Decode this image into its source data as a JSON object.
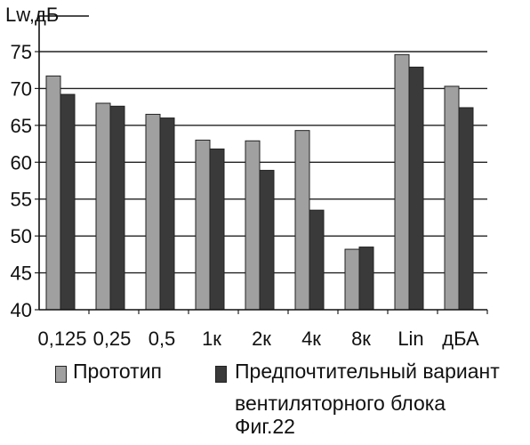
{
  "chart_data": {
    "type": "bar",
    "ylabel": "Lw,дБ",
    "xlabel": "",
    "title": "",
    "ylim": [
      40,
      75
    ],
    "yticks": [
      40,
      45,
      50,
      55,
      60,
      65,
      70,
      75
    ],
    "grid": true,
    "legend_position": "bottom",
    "categories": [
      "0,125",
      "0,25",
      "0,5",
      "1к",
      "2к",
      "4к",
      "8к",
      "Lin",
      "дБА"
    ],
    "series": [
      {
        "name": "Прототип",
        "color": "#a0a0a0",
        "values": [
          71.7,
          68.0,
          66.5,
          63.0,
          62.9,
          64.3,
          48.2,
          74.6,
          70.3
        ]
      },
      {
        "name": "Предпочтительный вариант вентиляторного блока",
        "color": "#3a3a3a",
        "values": [
          69.2,
          67.6,
          66.0,
          61.8,
          58.9,
          53.5,
          48.5,
          72.9,
          67.4
        ]
      }
    ]
  },
  "legend": {
    "series1_label": "Прототип",
    "series2_line1": "Предпочтительный вариант",
    "series2_line2": "вентиляторного блока"
  },
  "caption": "Фиг.22"
}
